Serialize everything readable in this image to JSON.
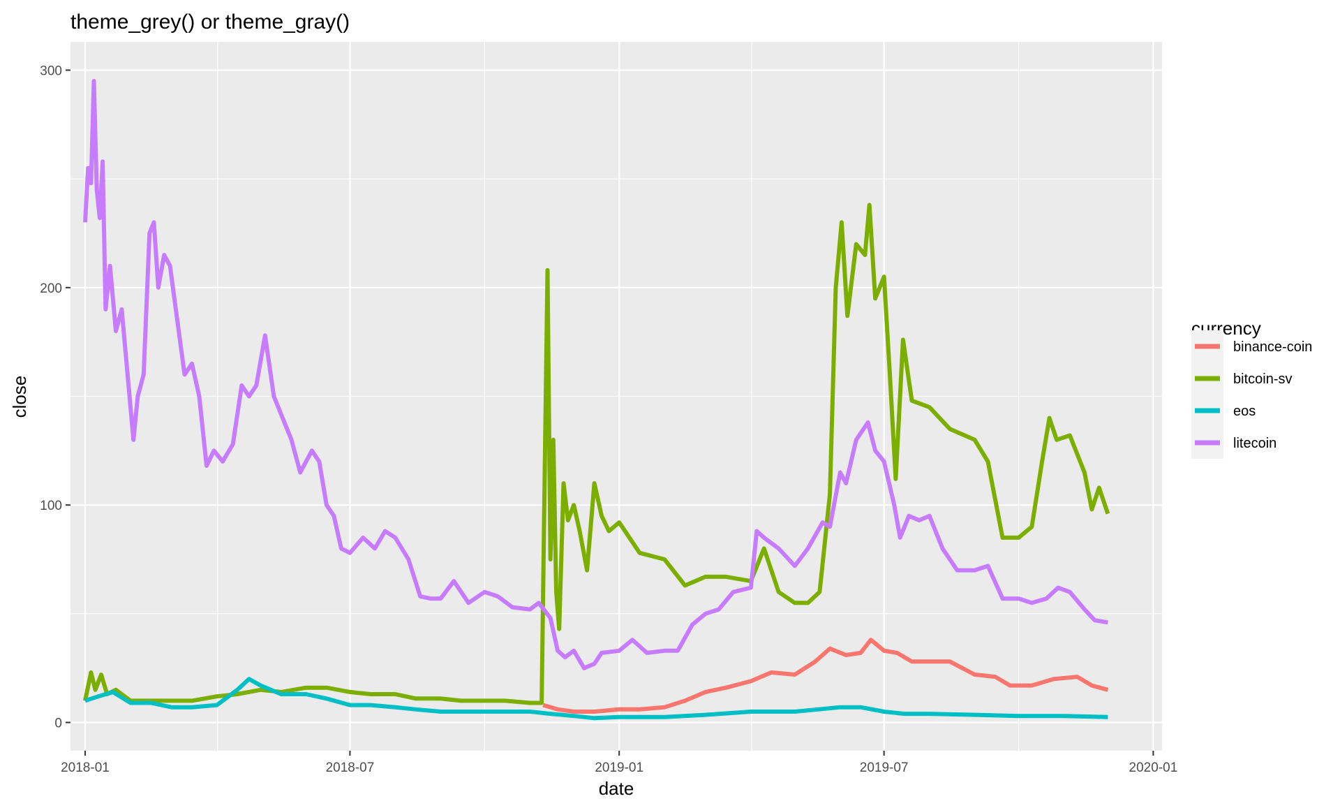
{
  "chart_data": {
    "type": "line",
    "title": "theme_grey()  or  theme_gray()",
    "xlabel": "date",
    "ylabel": "close",
    "x_ticks": [
      "2018-01",
      "2018-07",
      "2019-01",
      "2019-07",
      "2020-01"
    ],
    "y_ticks": [
      "0",
      "100",
      "200",
      "300"
    ],
    "xlim": [
      "2017-12-22",
      "2020-01-07"
    ],
    "ylim": [
      -13,
      313
    ],
    "grid": true,
    "legend": {
      "title": "currency",
      "position": "right"
    },
    "series": [
      {
        "name": "binance-coin",
        "color": "#F8766D",
        "points": [
          [
            "2018-11-10",
            8
          ],
          [
            "2018-11-20",
            6
          ],
          [
            "2018-12-01",
            5
          ],
          [
            "2018-12-15",
            5
          ],
          [
            "2019-01-01",
            6
          ],
          [
            "2019-01-15",
            6
          ],
          [
            "2019-02-01",
            7
          ],
          [
            "2019-02-15",
            10
          ],
          [
            "2019-03-01",
            14
          ],
          [
            "2019-03-15",
            16
          ],
          [
            "2019-04-01",
            19
          ],
          [
            "2019-04-15",
            23
          ],
          [
            "2019-05-01",
            22
          ],
          [
            "2019-05-15",
            28
          ],
          [
            "2019-05-25",
            34
          ],
          [
            "2019-06-05",
            31
          ],
          [
            "2019-06-15",
            32
          ],
          [
            "2019-06-22",
            38
          ],
          [
            "2019-07-01",
            33
          ],
          [
            "2019-07-10",
            32
          ],
          [
            "2019-07-20",
            28
          ],
          [
            "2019-08-01",
            28
          ],
          [
            "2019-08-15",
            28
          ],
          [
            "2019-09-01",
            22
          ],
          [
            "2019-09-15",
            21
          ],
          [
            "2019-09-25",
            17
          ],
          [
            "2019-10-10",
            17
          ],
          [
            "2019-10-25",
            20
          ],
          [
            "2019-11-10",
            21
          ],
          [
            "2019-11-20",
            17
          ],
          [
            "2019-12-01",
            15
          ]
        ]
      },
      {
        "name": "bitcoin-sv",
        "color": "#7CAE00",
        "points": [
          [
            "2018-01-01",
            10
          ],
          [
            "2018-01-05",
            23
          ],
          [
            "2018-01-08",
            15
          ],
          [
            "2018-01-12",
            22
          ],
          [
            "2018-01-16",
            13
          ],
          [
            "2018-01-22",
            15
          ],
          [
            "2018-02-01",
            10
          ],
          [
            "2018-02-15",
            10
          ],
          [
            "2018-03-01",
            10
          ],
          [
            "2018-03-15",
            10
          ],
          [
            "2018-04-01",
            12
          ],
          [
            "2018-04-15",
            13
          ],
          [
            "2018-05-01",
            15
          ],
          [
            "2018-05-15",
            14
          ],
          [
            "2018-06-01",
            16
          ],
          [
            "2018-06-15",
            16
          ],
          [
            "2018-07-01",
            14
          ],
          [
            "2018-07-15",
            13
          ],
          [
            "2018-08-01",
            13
          ],
          [
            "2018-08-15",
            11
          ],
          [
            "2018-09-01",
            11
          ],
          [
            "2018-09-15",
            10
          ],
          [
            "2018-10-01",
            10
          ],
          [
            "2018-10-15",
            10
          ],
          [
            "2018-11-01",
            9
          ],
          [
            "2018-11-09",
            9
          ],
          [
            "2018-11-11",
            110
          ],
          [
            "2018-11-13",
            208
          ],
          [
            "2018-11-15",
            75
          ],
          [
            "2018-11-17",
            130
          ],
          [
            "2018-11-19",
            60
          ],
          [
            "2018-11-21",
            43
          ],
          [
            "2018-11-24",
            110
          ],
          [
            "2018-11-27",
            93
          ],
          [
            "2018-12-01",
            100
          ],
          [
            "2018-12-05",
            88
          ],
          [
            "2018-12-10",
            70
          ],
          [
            "2018-12-15",
            110
          ],
          [
            "2018-12-20",
            95
          ],
          [
            "2018-12-25",
            88
          ],
          [
            "2019-01-01",
            92
          ],
          [
            "2019-01-15",
            78
          ],
          [
            "2019-02-01",
            75
          ],
          [
            "2019-02-15",
            63
          ],
          [
            "2019-03-01",
            67
          ],
          [
            "2019-03-15",
            67
          ],
          [
            "2019-04-01",
            65
          ],
          [
            "2019-04-10",
            80
          ],
          [
            "2019-04-20",
            60
          ],
          [
            "2019-05-01",
            55
          ],
          [
            "2019-05-10",
            55
          ],
          [
            "2019-05-18",
            60
          ],
          [
            "2019-05-25",
            105
          ],
          [
            "2019-05-29",
            200
          ],
          [
            "2019-06-02",
            230
          ],
          [
            "2019-06-06",
            187
          ],
          [
            "2019-06-12",
            220
          ],
          [
            "2019-06-18",
            215
          ],
          [
            "2019-06-21",
            238
          ],
          [
            "2019-06-25",
            195
          ],
          [
            "2019-07-01",
            205
          ],
          [
            "2019-07-05",
            160
          ],
          [
            "2019-07-09",
            112
          ],
          [
            "2019-07-14",
            176
          ],
          [
            "2019-07-20",
            148
          ],
          [
            "2019-08-01",
            145
          ],
          [
            "2019-08-15",
            135
          ],
          [
            "2019-09-01",
            130
          ],
          [
            "2019-09-10",
            120
          ],
          [
            "2019-09-20",
            85
          ],
          [
            "2019-10-01",
            85
          ],
          [
            "2019-10-10",
            90
          ],
          [
            "2019-10-17",
            120
          ],
          [
            "2019-10-22",
            140
          ],
          [
            "2019-10-27",
            130
          ],
          [
            "2019-11-05",
            132
          ],
          [
            "2019-11-15",
            115
          ],
          [
            "2019-11-20",
            98
          ],
          [
            "2019-11-25",
            108
          ],
          [
            "2019-12-01",
            96
          ]
        ]
      },
      {
        "name": "eos",
        "color": "#00BFC4",
        "points": [
          [
            "2018-01-01",
            10
          ],
          [
            "2018-01-10",
            12
          ],
          [
            "2018-01-20",
            14
          ],
          [
            "2018-02-01",
            9
          ],
          [
            "2018-02-15",
            9
          ],
          [
            "2018-03-01",
            7
          ],
          [
            "2018-03-15",
            7
          ],
          [
            "2018-04-01",
            8
          ],
          [
            "2018-04-15",
            15
          ],
          [
            "2018-04-23",
            20
          ],
          [
            "2018-05-01",
            17
          ],
          [
            "2018-05-15",
            13
          ],
          [
            "2018-06-01",
            13
          ],
          [
            "2018-06-15",
            11
          ],
          [
            "2018-07-01",
            8
          ],
          [
            "2018-07-15",
            8
          ],
          [
            "2018-08-01",
            7
          ],
          [
            "2018-08-15",
            6
          ],
          [
            "2018-09-01",
            5
          ],
          [
            "2018-09-15",
            5
          ],
          [
            "2018-10-01",
            5
          ],
          [
            "2018-10-15",
            5
          ],
          [
            "2018-11-01",
            5
          ],
          [
            "2018-11-15",
            4
          ],
          [
            "2018-12-01",
            3
          ],
          [
            "2018-12-15",
            2
          ],
          [
            "2019-01-01",
            2.5
          ],
          [
            "2019-02-01",
            2.5
          ],
          [
            "2019-03-01",
            3.5
          ],
          [
            "2019-04-01",
            5
          ],
          [
            "2019-05-01",
            5
          ],
          [
            "2019-06-01",
            7
          ],
          [
            "2019-06-15",
            7
          ],
          [
            "2019-07-01",
            5
          ],
          [
            "2019-07-15",
            4
          ],
          [
            "2019-08-01",
            4
          ],
          [
            "2019-09-01",
            3.5
          ],
          [
            "2019-10-01",
            3
          ],
          [
            "2019-11-01",
            3
          ],
          [
            "2019-12-01",
            2.5
          ]
        ]
      },
      {
        "name": "litecoin",
        "color": "#C77CFF",
        "points": [
          [
            "2018-01-01",
            230
          ],
          [
            "2018-01-03",
            255
          ],
          [
            "2018-01-05",
            248
          ],
          [
            "2018-01-07",
            295
          ],
          [
            "2018-01-09",
            245
          ],
          [
            "2018-01-11",
            232
          ],
          [
            "2018-01-13",
            258
          ],
          [
            "2018-01-15",
            190
          ],
          [
            "2018-01-18",
            210
          ],
          [
            "2018-01-22",
            180
          ],
          [
            "2018-01-26",
            190
          ],
          [
            "2018-01-30",
            160
          ],
          [
            "2018-02-03",
            130
          ],
          [
            "2018-02-06",
            150
          ],
          [
            "2018-02-10",
            160
          ],
          [
            "2018-02-14",
            225
          ],
          [
            "2018-02-17",
            230
          ],
          [
            "2018-02-20",
            200
          ],
          [
            "2018-02-24",
            215
          ],
          [
            "2018-02-28",
            210
          ],
          [
            "2018-03-05",
            185
          ],
          [
            "2018-03-10",
            160
          ],
          [
            "2018-03-15",
            165
          ],
          [
            "2018-03-20",
            150
          ],
          [
            "2018-03-25",
            118
          ],
          [
            "2018-03-30",
            125
          ],
          [
            "2018-04-05",
            120
          ],
          [
            "2018-04-12",
            128
          ],
          [
            "2018-04-18",
            155
          ],
          [
            "2018-04-23",
            150
          ],
          [
            "2018-04-28",
            155
          ],
          [
            "2018-05-04",
            178
          ],
          [
            "2018-05-10",
            150
          ],
          [
            "2018-05-16",
            140
          ],
          [
            "2018-05-22",
            130
          ],
          [
            "2018-05-28",
            115
          ],
          [
            "2018-06-05",
            125
          ],
          [
            "2018-06-10",
            120
          ],
          [
            "2018-06-15",
            100
          ],
          [
            "2018-06-20",
            95
          ],
          [
            "2018-06-25",
            80
          ],
          [
            "2018-07-01",
            78
          ],
          [
            "2018-07-10",
            85
          ],
          [
            "2018-07-18",
            80
          ],
          [
            "2018-07-25",
            88
          ],
          [
            "2018-08-01",
            85
          ],
          [
            "2018-08-10",
            75
          ],
          [
            "2018-08-18",
            58
          ],
          [
            "2018-08-25",
            57
          ],
          [
            "2018-09-01",
            57
          ],
          [
            "2018-09-10",
            65
          ],
          [
            "2018-09-20",
            55
          ],
          [
            "2018-10-01",
            60
          ],
          [
            "2018-10-10",
            58
          ],
          [
            "2018-10-20",
            53
          ],
          [
            "2018-11-01",
            52
          ],
          [
            "2018-11-07",
            55
          ],
          [
            "2018-11-15",
            48
          ],
          [
            "2018-11-20",
            33
          ],
          [
            "2018-11-25",
            30
          ],
          [
            "2018-12-01",
            33
          ],
          [
            "2018-12-08",
            25
          ],
          [
            "2018-12-15",
            27
          ],
          [
            "2018-12-20",
            32
          ],
          [
            "2019-01-01",
            33
          ],
          [
            "2019-01-10",
            38
          ],
          [
            "2019-01-20",
            32
          ],
          [
            "2019-02-01",
            33
          ],
          [
            "2019-02-10",
            33
          ],
          [
            "2019-02-20",
            45
          ],
          [
            "2019-03-01",
            50
          ],
          [
            "2019-03-10",
            52
          ],
          [
            "2019-03-20",
            60
          ],
          [
            "2019-04-01",
            62
          ],
          [
            "2019-04-05",
            88
          ],
          [
            "2019-04-10",
            85
          ],
          [
            "2019-04-20",
            80
          ],
          [
            "2019-05-01",
            72
          ],
          [
            "2019-05-10",
            80
          ],
          [
            "2019-05-20",
            92
          ],
          [
            "2019-05-25",
            90
          ],
          [
            "2019-06-01",
            115
          ],
          [
            "2019-06-05",
            110
          ],
          [
            "2019-06-12",
            130
          ],
          [
            "2019-06-20",
            138
          ],
          [
            "2019-06-25",
            125
          ],
          [
            "2019-07-01",
            120
          ],
          [
            "2019-07-08",
            100
          ],
          [
            "2019-07-12",
            85
          ],
          [
            "2019-07-18",
            95
          ],
          [
            "2019-07-25",
            93
          ],
          [
            "2019-08-01",
            95
          ],
          [
            "2019-08-10",
            80
          ],
          [
            "2019-08-20",
            70
          ],
          [
            "2019-09-01",
            70
          ],
          [
            "2019-09-10",
            72
          ],
          [
            "2019-09-20",
            57
          ],
          [
            "2019-10-01",
            57
          ],
          [
            "2019-10-10",
            55
          ],
          [
            "2019-10-20",
            57
          ],
          [
            "2019-10-28",
            62
          ],
          [
            "2019-11-05",
            60
          ],
          [
            "2019-11-15",
            52
          ],
          [
            "2019-11-22",
            47
          ],
          [
            "2019-12-01",
            46
          ]
        ]
      }
    ]
  }
}
